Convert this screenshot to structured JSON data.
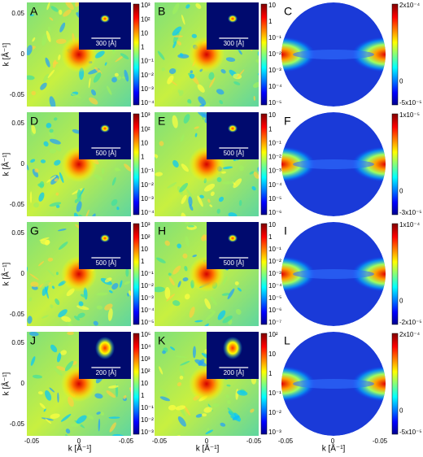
{
  "y_axis": {
    "label": "k [Å⁻¹]",
    "ticks": [
      "0.05",
      "0",
      "-0.05"
    ]
  },
  "x_axis": {
    "label": "k [Å⁻¹]",
    "ticks": [
      "-0.05",
      "0",
      "-0.05"
    ]
  },
  "panels": [
    {
      "letter": "A",
      "scale": "300 [Å]",
      "colorbar": [
        "10³",
        "10²",
        "10",
        "1",
        "10⁻¹",
        "10⁻²",
        "10⁻³",
        "10⁻⁴"
      ]
    },
    {
      "letter": "B",
      "scale": "300 [Å]",
      "colorbar": [
        "10",
        "1",
        "10⁻¹",
        "10⁻²",
        "10⁻³",
        "10⁻⁴",
        "10⁻⁵"
      ]
    },
    {
      "letter": "C",
      "colorbar": [
        "2x10⁻⁴",
        "0",
        "-5x10⁻⁵"
      ]
    },
    {
      "letter": "D",
      "scale": "500 [Å]",
      "colorbar": [
        "10³",
        "10²",
        "10",
        "1",
        "10⁻¹",
        "10⁻²",
        "10⁻³",
        "10⁻⁴"
      ]
    },
    {
      "letter": "E",
      "scale": "500 [Å]",
      "colorbar": [
        "10",
        "1",
        "10⁻¹",
        "10⁻²",
        "10⁻³",
        "10⁻⁴",
        "10⁻⁵",
        "10⁻⁶"
      ]
    },
    {
      "letter": "F",
      "colorbar": [
        "1x10⁻⁵",
        "0",
        "-3x10⁻⁵"
      ]
    },
    {
      "letter": "G",
      "scale": "500 [Å]",
      "colorbar": [
        "10³",
        "10²",
        "10",
        "1",
        "10⁻¹",
        "10⁻²",
        "10⁻³",
        "10⁻⁴",
        "10⁻⁵"
      ]
    },
    {
      "letter": "H",
      "scale": "500 [Å]",
      "colorbar": [
        "10",
        "1",
        "10⁻¹",
        "10⁻²",
        "10⁻³",
        "10⁻⁴",
        "10⁻⁵",
        "10⁻⁶",
        "10⁻⁷"
      ]
    },
    {
      "letter": "I",
      "colorbar": [
        "1x10⁻⁴",
        "0",
        "-2x10⁻⁵"
      ]
    },
    {
      "letter": "J",
      "scale": "200 [Å]",
      "colorbar": [
        "10⁵",
        "10⁴",
        "10³",
        "10²",
        "10",
        "1",
        "10⁻¹",
        "10⁻²",
        "10⁻³"
      ]
    },
    {
      "letter": "K",
      "scale": "200 [Å]",
      "colorbar": [
        "10²",
        "10",
        "1",
        "10⁻¹",
        "10⁻²",
        "10⁻³"
      ]
    },
    {
      "letter": "L",
      "colorbar": [
        "2x10⁻⁴",
        "0",
        "-5x10⁻⁵"
      ]
    }
  ]
}
